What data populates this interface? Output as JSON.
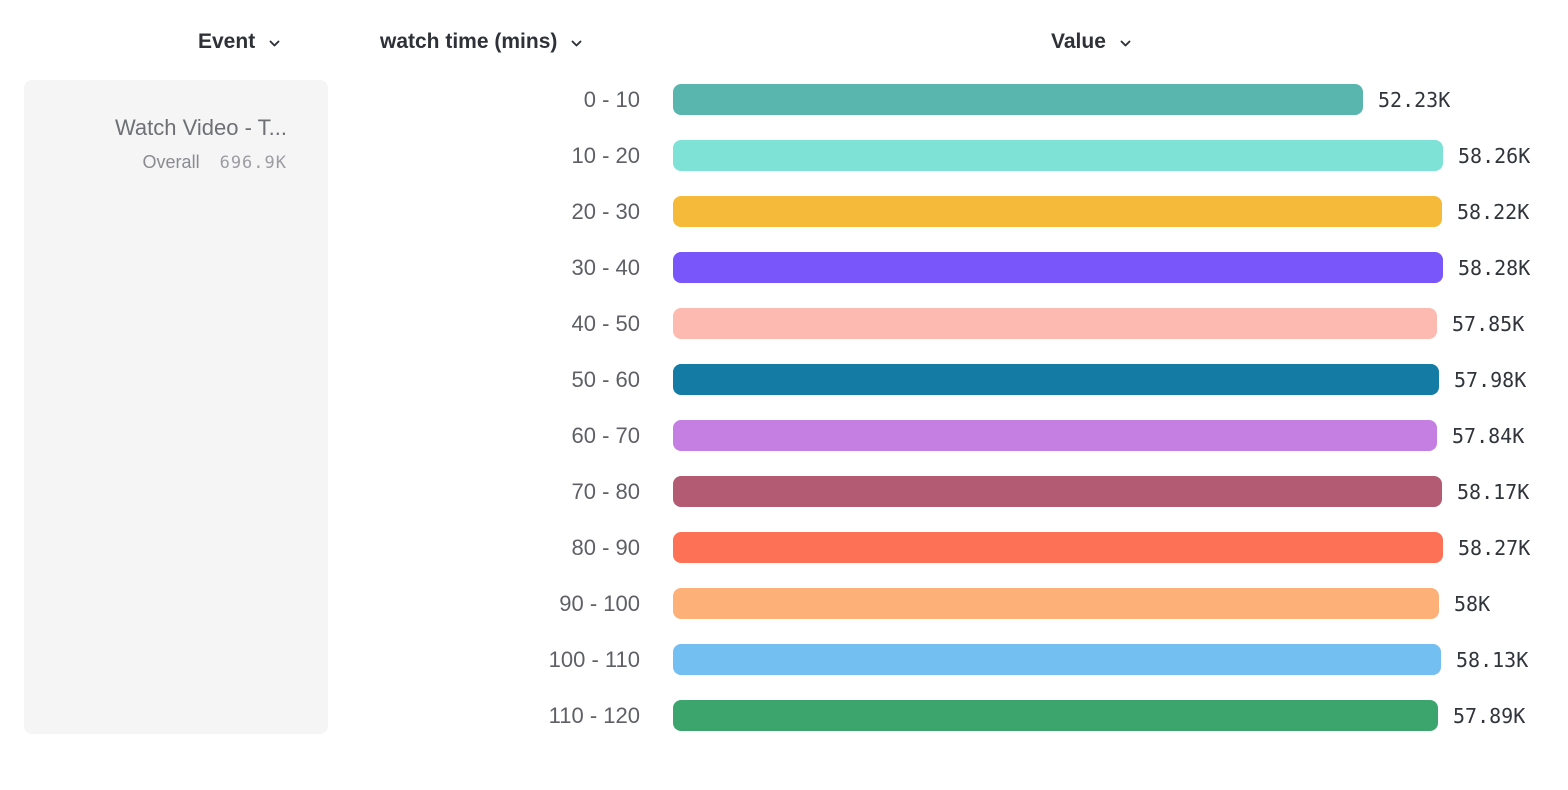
{
  "header": {
    "columns": [
      {
        "id": "event",
        "label": "Event"
      },
      {
        "id": "breakdown",
        "label": "watch time (mins)"
      },
      {
        "id": "value",
        "label": "Value"
      }
    ]
  },
  "legend": {
    "event_name": "Watch Video - T...",
    "overall_label": "Overall",
    "overall_value": "696.9K"
  },
  "chart_data": {
    "type": "bar",
    "orientation": "horizontal",
    "title": "",
    "xlabel": "watch time (mins)",
    "ylabel": "Value",
    "categories": [
      "0 - 10",
      "10 - 20",
      "20 - 30",
      "30 - 40",
      "40 - 50",
      "50 - 60",
      "60 - 70",
      "70 - 80",
      "80 - 90",
      "90 - 100",
      "100 - 110",
      "110 - 120"
    ],
    "values": [
      52230,
      58260,
      58220,
      58280,
      57850,
      57980,
      57840,
      58170,
      58270,
      58000,
      58130,
      57890
    ],
    "value_labels": [
      "52.23K",
      "58.26K",
      "58.22K",
      "58.28K",
      "57.85K",
      "57.98K",
      "57.84K",
      "58.17K",
      "58.27K",
      "58K",
      "58.13K",
      "57.89K"
    ],
    "colors": [
      "#58B6AE",
      "#7FE2D6",
      "#F6BA3B",
      "#7856FA",
      "#FDBAB0",
      "#147CA4",
      "#C57EE2",
      "#B25B73",
      "#FD7256",
      "#FDB078",
      "#73BFF2",
      "#3CA56E"
    ],
    "xlim": [
      0,
      58280
    ],
    "grid": false,
    "legend_position": "left"
  },
  "ui_colors": {
    "header_text": "#2e3137",
    "category_text": "#5e6065",
    "value_text": "#30343b",
    "legend_card_bg": "#f5f5f6"
  }
}
